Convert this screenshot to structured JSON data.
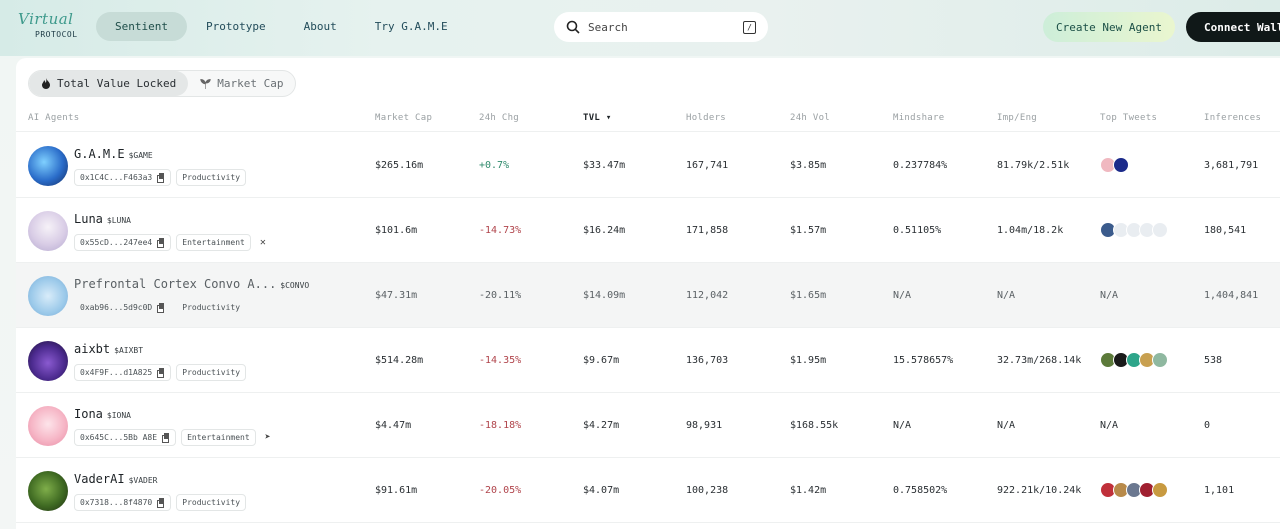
{
  "brand": {
    "word": "Virtual",
    "sub": "PROTOCOL"
  },
  "nav": [
    {
      "label": "Sentient",
      "active": true
    },
    {
      "label": "Prototype",
      "active": false
    },
    {
      "label": "About",
      "active": false
    },
    {
      "label": "Try G.A.M.E",
      "active": false
    }
  ],
  "search": {
    "placeholder": "Search",
    "shortcut": "/"
  },
  "actions": {
    "create": "Create New Agent",
    "connect": "Connect Wallet"
  },
  "toggle": {
    "tvl": "Total Value Locked",
    "mcap": "Market Cap"
  },
  "columns": {
    "agents": "AI Agents",
    "mcap": "Market Cap",
    "chg": "24h Chg",
    "tvl": "TVL ▾",
    "holders": "Holders",
    "vol": "24h Vol",
    "mindshare": "Mindshare",
    "impeng": "Imp/Eng",
    "tweets": "Top Tweets",
    "inferences": "Inferences"
  },
  "colors": {
    "accent": "#3e9a8c",
    "positive": "#2f8a6c",
    "negative": "#b0444b"
  },
  "rows": [
    {
      "name": "G.A.M.E",
      "ticker": "$GAME",
      "address": "0x1C4C...F463a3",
      "category": "Productivity",
      "social": "",
      "mcap": "$265.16m",
      "chg": "+0.7%",
      "tvl": "$33.47m",
      "holders": "167,741",
      "vol": "$3.85m",
      "mindshare": "0.237784%",
      "impeng": "81.79k/2.51k",
      "tweets_text": "",
      "inferences": "3,681,791"
    },
    {
      "name": "Luna",
      "ticker": "$LUNA",
      "address": "0x55cD...247ee4",
      "category": "Entertainment",
      "social": "x-icon",
      "mcap": "$101.6m",
      "chg": "-14.73%",
      "tvl": "$16.24m",
      "holders": "171,858",
      "vol": "$1.57m",
      "mindshare": "0.51105%",
      "impeng": "1.04m/18.2k",
      "tweets_text": "",
      "inferences": "180,541"
    },
    {
      "name": "Prefrontal Cortex Convo A...",
      "ticker": "$CONVO",
      "address": "0xab96...5d9c0D",
      "category": "Productivity",
      "social": "",
      "mcap": "$47.31m",
      "chg": "-20.11%",
      "tvl": "$14.09m",
      "holders": "112,042",
      "vol": "$1.65m",
      "mindshare": "N/A",
      "impeng": "N/A",
      "tweets_text": "N/A",
      "inferences": "1,404,841"
    },
    {
      "name": "aixbt",
      "ticker": "$AIXBT",
      "address": "0x4F9F...d1A825",
      "category": "Productivity",
      "social": "",
      "mcap": "$514.28m",
      "chg": "-14.35%",
      "tvl": "$9.67m",
      "holders": "136,703",
      "vol": "$1.95m",
      "mindshare": "15.578657%",
      "impeng": "32.73m/268.14k",
      "tweets_text": "",
      "inferences": "538"
    },
    {
      "name": "Iona",
      "ticker": "$IONA",
      "address": "0x645C...5Bb A8E",
      "category": "Entertainment",
      "social": "telegram-icon",
      "mcap": "$4.47m",
      "chg": "-18.18%",
      "tvl": "$4.27m",
      "holders": "98,931",
      "vol": "$168.55k",
      "mindshare": "N/A",
      "impeng": "N/A",
      "tweets_text": "N/A",
      "inferences": "0"
    },
    {
      "name": "VaderAI",
      "ticker": "$VADER",
      "address": "0x7318...8f4870",
      "category": "Productivity",
      "social": "",
      "mcap": "$91.61m",
      "chg": "-20.05%",
      "tvl": "$4.07m",
      "holders": "100,238",
      "vol": "$1.42m",
      "mindshare": "0.758502%",
      "impeng": "922.21k/10.24k",
      "tweets_text": "",
      "inferences": "1,101"
    }
  ]
}
